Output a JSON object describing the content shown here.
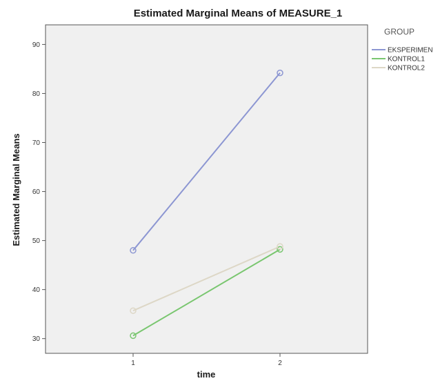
{
  "chart_data": {
    "type": "line",
    "title": "Estimated Marginal Means of MEASURE_1",
    "xlabel": "time",
    "ylabel": "Estimated Marginal Means",
    "categories": [
      "1",
      "2"
    ],
    "y_ticks": [
      30,
      40,
      50,
      60,
      70,
      80,
      90
    ],
    "ylim": [
      27,
      94
    ],
    "grid": false,
    "legend": {
      "title": "GROUP",
      "placement": "right"
    },
    "series": [
      {
        "name": "EKSPERIMEN",
        "values": [
          48.0,
          84.2
        ],
        "color": "#8c96d2"
      },
      {
        "name": "KONTROL1",
        "values": [
          30.6,
          48.2
        ],
        "color": "#79c66f"
      },
      {
        "name": "KONTROL2",
        "values": [
          35.7,
          48.8
        ],
        "color": "#ddd7c6"
      }
    ],
    "plot_background": "#f0f0f0"
  }
}
